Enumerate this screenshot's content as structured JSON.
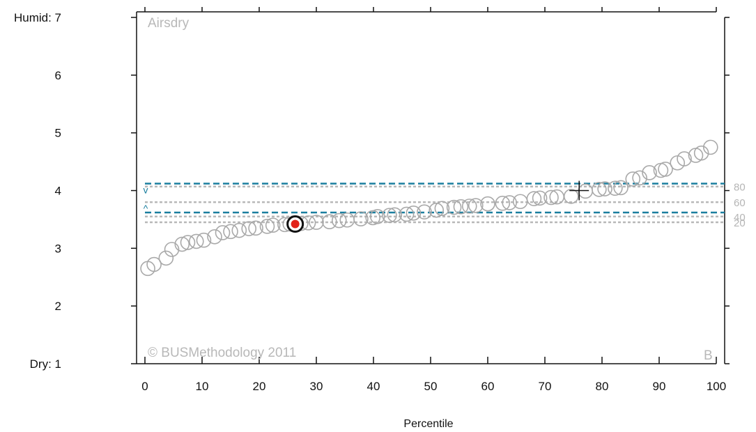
{
  "chart_data": {
    "type": "scatter",
    "title": "Airsdry",
    "xlabel": "Percentile",
    "ylabel": "",
    "xlim": [
      0,
      100
    ],
    "ylim": [
      1,
      7
    ],
    "x_ticks": [
      "0",
      "10",
      "20",
      "30",
      "40",
      "50",
      "60",
      "70",
      "80",
      "90",
      "100"
    ],
    "y_ticks": [
      {
        "value": 7,
        "label": "Humid: 7"
      },
      {
        "value": 6,
        "label": "6"
      },
      {
        "value": 5,
        "label": "5"
      },
      {
        "value": 4,
        "label": "4"
      },
      {
        "value": 3,
        "label": "3"
      },
      {
        "value": 2,
        "label": "2"
      },
      {
        "value": 1,
        "label": "Dry: 1"
      }
    ],
    "percentile_lines": [
      {
        "label": "80",
        "y": 4.07
      },
      {
        "label": "60",
        "y": 3.8
      },
      {
        "label": "40",
        "y": 3.55
      },
      {
        "label": "20",
        "y": 3.45
      }
    ],
    "band": {
      "upper": 4.12,
      "lower": 3.62,
      "upper_marker": "v",
      "lower_marker": "^"
    },
    "points": [
      {
        "x": 0.5,
        "y": 2.65
      },
      {
        "x": 1.6,
        "y": 2.72
      },
      {
        "x": 3.7,
        "y": 2.83
      },
      {
        "x": 4.7,
        "y": 2.98
      },
      {
        "x": 6.5,
        "y": 3.07
      },
      {
        "x": 7.5,
        "y": 3.1
      },
      {
        "x": 9.0,
        "y": 3.12
      },
      {
        "x": 10.3,
        "y": 3.14
      },
      {
        "x": 12.2,
        "y": 3.2
      },
      {
        "x": 13.6,
        "y": 3.27
      },
      {
        "x": 15.0,
        "y": 3.29
      },
      {
        "x": 16.5,
        "y": 3.31
      },
      {
        "x": 18.2,
        "y": 3.34
      },
      {
        "x": 19.4,
        "y": 3.35
      },
      {
        "x": 21.4,
        "y": 3.38
      },
      {
        "x": 22.4,
        "y": 3.4
      },
      {
        "x": 24.5,
        "y": 3.41
      },
      {
        "x": 25.4,
        "y": 3.42
      },
      {
        "x": 27.3,
        "y": 3.43
      },
      {
        "x": 28.6,
        "y": 3.44
      },
      {
        "x": 30.0,
        "y": 3.45
      },
      {
        "x": 32.3,
        "y": 3.46
      },
      {
        "x": 34.0,
        "y": 3.48
      },
      {
        "x": 35.4,
        "y": 3.49
      },
      {
        "x": 37.8,
        "y": 3.51
      },
      {
        "x": 39.9,
        "y": 3.53
      },
      {
        "x": 40.7,
        "y": 3.55
      },
      {
        "x": 42.8,
        "y": 3.57
      },
      {
        "x": 43.7,
        "y": 3.58
      },
      {
        "x": 45.8,
        "y": 3.59
      },
      {
        "x": 47.0,
        "y": 3.61
      },
      {
        "x": 48.9,
        "y": 3.63
      },
      {
        "x": 51.0,
        "y": 3.66
      },
      {
        "x": 52.0,
        "y": 3.69
      },
      {
        "x": 54.1,
        "y": 3.71
      },
      {
        "x": 55.3,
        "y": 3.72
      },
      {
        "x": 56.8,
        "y": 3.73
      },
      {
        "x": 57.9,
        "y": 3.74
      },
      {
        "x": 60.0,
        "y": 3.77
      },
      {
        "x": 62.6,
        "y": 3.78
      },
      {
        "x": 63.8,
        "y": 3.79
      },
      {
        "x": 65.7,
        "y": 3.81
      },
      {
        "x": 68.1,
        "y": 3.86
      },
      {
        "x": 69.1,
        "y": 3.87
      },
      {
        "x": 71.1,
        "y": 3.88
      },
      {
        "x": 72.1,
        "y": 3.89
      },
      {
        "x": 74.6,
        "y": 3.9
      },
      {
        "x": 77.1,
        "y": 3.99
      },
      {
        "x": 79.5,
        "y": 4.02
      },
      {
        "x": 80.5,
        "y": 4.03
      },
      {
        "x": 82.3,
        "y": 4.04
      },
      {
        "x": 83.3,
        "y": 4.05
      },
      {
        "x": 85.4,
        "y": 4.2
      },
      {
        "x": 86.6,
        "y": 4.22
      },
      {
        "x": 88.3,
        "y": 4.31
      },
      {
        "x": 90.3,
        "y": 4.35
      },
      {
        "x": 91.1,
        "y": 4.37
      },
      {
        "x": 93.2,
        "y": 4.48
      },
      {
        "x": 94.4,
        "y": 4.55
      },
      {
        "x": 96.4,
        "y": 4.61
      },
      {
        "x": 97.4,
        "y": 4.65
      },
      {
        "x": 99.0,
        "y": 4.75
      }
    ],
    "highlight": {
      "x": 26.3,
      "y": 3.42
    },
    "crosshair": {
      "x": 76.0,
      "y": 4.0
    },
    "annotations": {
      "copyright": "© BUSMethodology 2011",
      "panel_letter": "B"
    }
  },
  "colors": {
    "point": "#a9a9a9",
    "band": "#1b7f9f",
    "percentile": "#b8b8b8",
    "highlight_fill": "#e2231a",
    "axis": "#111111"
  }
}
